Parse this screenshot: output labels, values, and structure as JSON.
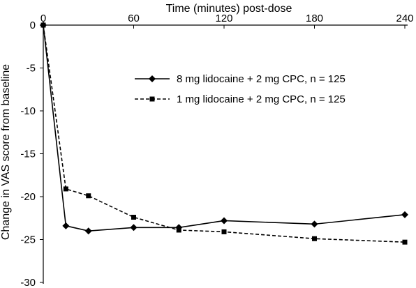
{
  "chart_data": {
    "type": "line",
    "xlabel": "Time (minutes) post-dose",
    "ylabel": "Change in VAS score from baseline",
    "x_ticks": [
      0,
      60,
      120,
      180,
      240
    ],
    "y_ticks": [
      0,
      -5,
      -10,
      -15,
      -20,
      -25,
      -30
    ],
    "xlim": [
      0,
      240
    ],
    "ylim": [
      -30,
      0
    ],
    "x_axis_position": "top",
    "legend_position": "center-right",
    "grid": false,
    "x": [
      0,
      15,
      30,
      60,
      90,
      120,
      180,
      240
    ],
    "series": [
      {
        "name": "8 mg lidocaine + 2 mg CPC, n = 125",
        "marker": "diamond",
        "dash": "solid",
        "values": [
          0,
          -23.4,
          -24.0,
          -23.6,
          -23.6,
          -22.8,
          -23.2,
          -22.1
        ]
      },
      {
        "name": "1 mg lidocaine + 2 mg CPC, n = 125",
        "marker": "square",
        "dash": "dashed",
        "values": [
          0,
          -19.1,
          -19.9,
          -22.4,
          -23.9,
          -24.1,
          -24.9,
          -25.3
        ]
      }
    ]
  }
}
